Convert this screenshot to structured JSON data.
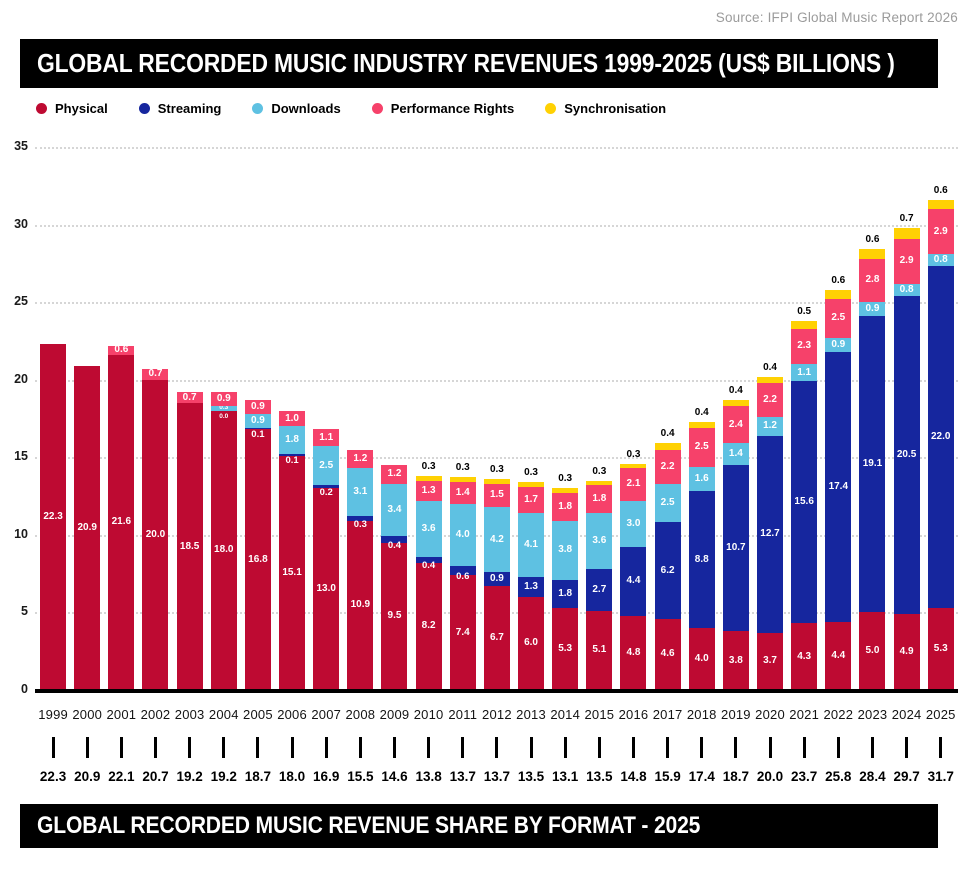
{
  "source": "Source: IFPI Global Music Report 2026",
  "header": {
    "title": "GLOBAL RECORDED MUSIC INDUSTRY REVENUES 1999-2025 (US$ BILLIONS )"
  },
  "footer_header": {
    "title": "GLOBAL RECORDED MUSIC REVENUE SHARE BY FORMAT - 2025"
  },
  "colors": {
    "physical": "#BE0A32",
    "streaming": "#16269E",
    "downloads": "#5EC1E2",
    "performance_rights": "#F6416A",
    "synchronisation": "#FFD103",
    "bar_background": "#000000",
    "grid": "#d6d6d6",
    "source_text": "#9b9b9b"
  },
  "chart_data": {
    "type": "bar",
    "stacked": true,
    "title": "GLOBAL RECORDED MUSIC INDUSTRY REVENUES 1999-2025 (US$ BILLIONS )",
    "xlabel": "",
    "ylabel": "",
    "ylim": [
      0,
      35
    ],
    "yticks": [
      0,
      5,
      10,
      15,
      20,
      25,
      30,
      35
    ],
    "grid": "horizontal-dotted",
    "legend_position": "top",
    "categories": [
      "1999",
      "2000",
      "2001",
      "2002",
      "2003",
      "2004",
      "2005",
      "2006",
      "2007",
      "2008",
      "2009",
      "2010",
      "2011",
      "2012",
      "2013",
      "2014",
      "2015",
      "2016",
      "2017",
      "2018",
      "2019",
      "2020",
      "2021",
      "2022",
      "2023",
      "2024",
      "2025"
    ],
    "series": [
      {
        "name": "Physical",
        "color": "#BE0A32",
        "values": [
          22.3,
          20.9,
          21.6,
          20.0,
          18.5,
          18.0,
          16.8,
          15.1,
          13.0,
          10.9,
          9.5,
          8.2,
          7.4,
          6.7,
          6.0,
          5.3,
          5.1,
          4.8,
          4.6,
          4.0,
          3.8,
          3.7,
          4.3,
          4.4,
          5.0,
          4.9,
          5.3
        ],
        "labels": [
          "22.3",
          "20.9",
          "21.6",
          "20.0",
          "18.5",
          "18.0",
          "16.8",
          "15.1",
          "13.0",
          "10.9",
          "9.5",
          "8.2",
          "7.4",
          "6.7",
          "6.0",
          "5.3",
          "5.1",
          "4.8",
          "4.6",
          "4.0",
          "3.8",
          "3.7",
          "4.3",
          "4.4",
          "5.0",
          "4.9",
          "5.3"
        ]
      },
      {
        "name": "Streaming",
        "color": "#16269E",
        "values": [
          0,
          0,
          0,
          0,
          0,
          0.0,
          0.1,
          0.1,
          0.2,
          0.3,
          0.4,
          0.4,
          0.6,
          0.9,
          1.3,
          1.8,
          2.7,
          4.4,
          6.2,
          8.8,
          10.7,
          12.7,
          15.6,
          17.4,
          19.1,
          20.5,
          22.0
        ],
        "labels": [
          "",
          "",
          "",
          "",
          "",
          "0.0",
          "0.1",
          "0.1",
          "0.2",
          "0.3",
          "0.4",
          "0.4",
          "0.6",
          "0.9",
          "1.3",
          "1.8",
          "2.7",
          "4.4",
          "6.2",
          "8.8",
          "10.7",
          "12.7",
          "15.6",
          "17.4",
          "19.1",
          "20.5",
          "22.0"
        ]
      },
      {
        "name": "Downloads",
        "color": "#5EC1E2",
        "values": [
          0,
          0,
          0,
          0,
          0,
          0.3,
          0.9,
          1.8,
          2.5,
          3.1,
          3.4,
          3.6,
          4.0,
          4.2,
          4.1,
          3.8,
          3.6,
          3.0,
          2.5,
          1.6,
          1.4,
          1.2,
          1.1,
          0.9,
          0.9,
          0.8,
          0.8
        ],
        "labels": [
          "",
          "",
          "",
          "",
          "",
          "0.3",
          "0.9",
          "1.8",
          "2.5",
          "3.1",
          "3.4",
          "3.6",
          "4.0",
          "4.2",
          "4.1",
          "3.8",
          "3.6",
          "3.0",
          "2.5",
          "1.6",
          "1.4",
          "1.2",
          "1.1",
          "0.9",
          "0.9",
          "0.8",
          "0.8"
        ]
      },
      {
        "name": "Performance Rights",
        "color": "#F6416A",
        "values": [
          0,
          0,
          0.6,
          0.7,
          0.7,
          0.9,
          0.9,
          1.0,
          1.1,
          1.2,
          1.2,
          1.3,
          1.4,
          1.5,
          1.7,
          1.8,
          1.8,
          2.1,
          2.2,
          2.5,
          2.4,
          2.2,
          2.3,
          2.5,
          2.8,
          2.9,
          2.9
        ],
        "labels": [
          "",
          "",
          "0.6",
          "0.7",
          "0.7",
          "0.9",
          "0.9",
          "1.0",
          "1.1",
          "1.2",
          "1.2",
          "1.3",
          "1.4",
          "1.5",
          "1.7",
          "1.8",
          "1.8",
          "2.1",
          "2.2",
          "2.5",
          "2.4",
          "2.2",
          "2.3",
          "2.5",
          "2.8",
          "2.9",
          "2.9"
        ]
      },
      {
        "name": "Synchronisation",
        "color": "#FFD103",
        "values": [
          0,
          0,
          0,
          0,
          0,
          0,
          0,
          0,
          0,
          0,
          0,
          0.3,
          0.3,
          0.3,
          0.3,
          0.3,
          0.3,
          0.3,
          0.4,
          0.4,
          0.4,
          0.4,
          0.5,
          0.6,
          0.6,
          0.7,
          0.6
        ],
        "labels": [
          "",
          "",
          "",
          "",
          "",
          "",
          "",
          "",
          "",
          "",
          "",
          "0.3",
          "0.3",
          "0.3",
          "0.3",
          "0.3",
          "0.3",
          "0.3",
          "0.4",
          "0.4",
          "0.4",
          "0.4",
          "0.5",
          "0.6",
          "0.6",
          "0.7",
          "0.6"
        ]
      }
    ],
    "totals": [
      "22.3",
      "20.9",
      "22.1",
      "20.7",
      "19.2",
      "19.2",
      "18.7",
      "18.0",
      "16.9",
      "15.5",
      "14.6",
      "13.8",
      "13.7",
      "13.7",
      "13.5",
      "13.1",
      "13.5",
      "14.8",
      "15.9",
      "17.4",
      "18.7",
      "20.0",
      "23.7",
      "25.8",
      "28.4",
      "29.7",
      "31.7"
    ]
  },
  "legend": [
    {
      "label": "Physical",
      "color": "#BE0A32"
    },
    {
      "label": "Streaming",
      "color": "#16269E"
    },
    {
      "label": "Downloads",
      "color": "#5EC1E2"
    },
    {
      "label": "Performance Rights",
      "color": "#F6416A"
    },
    {
      "label": "Synchronisation",
      "color": "#FFD103"
    }
  ]
}
